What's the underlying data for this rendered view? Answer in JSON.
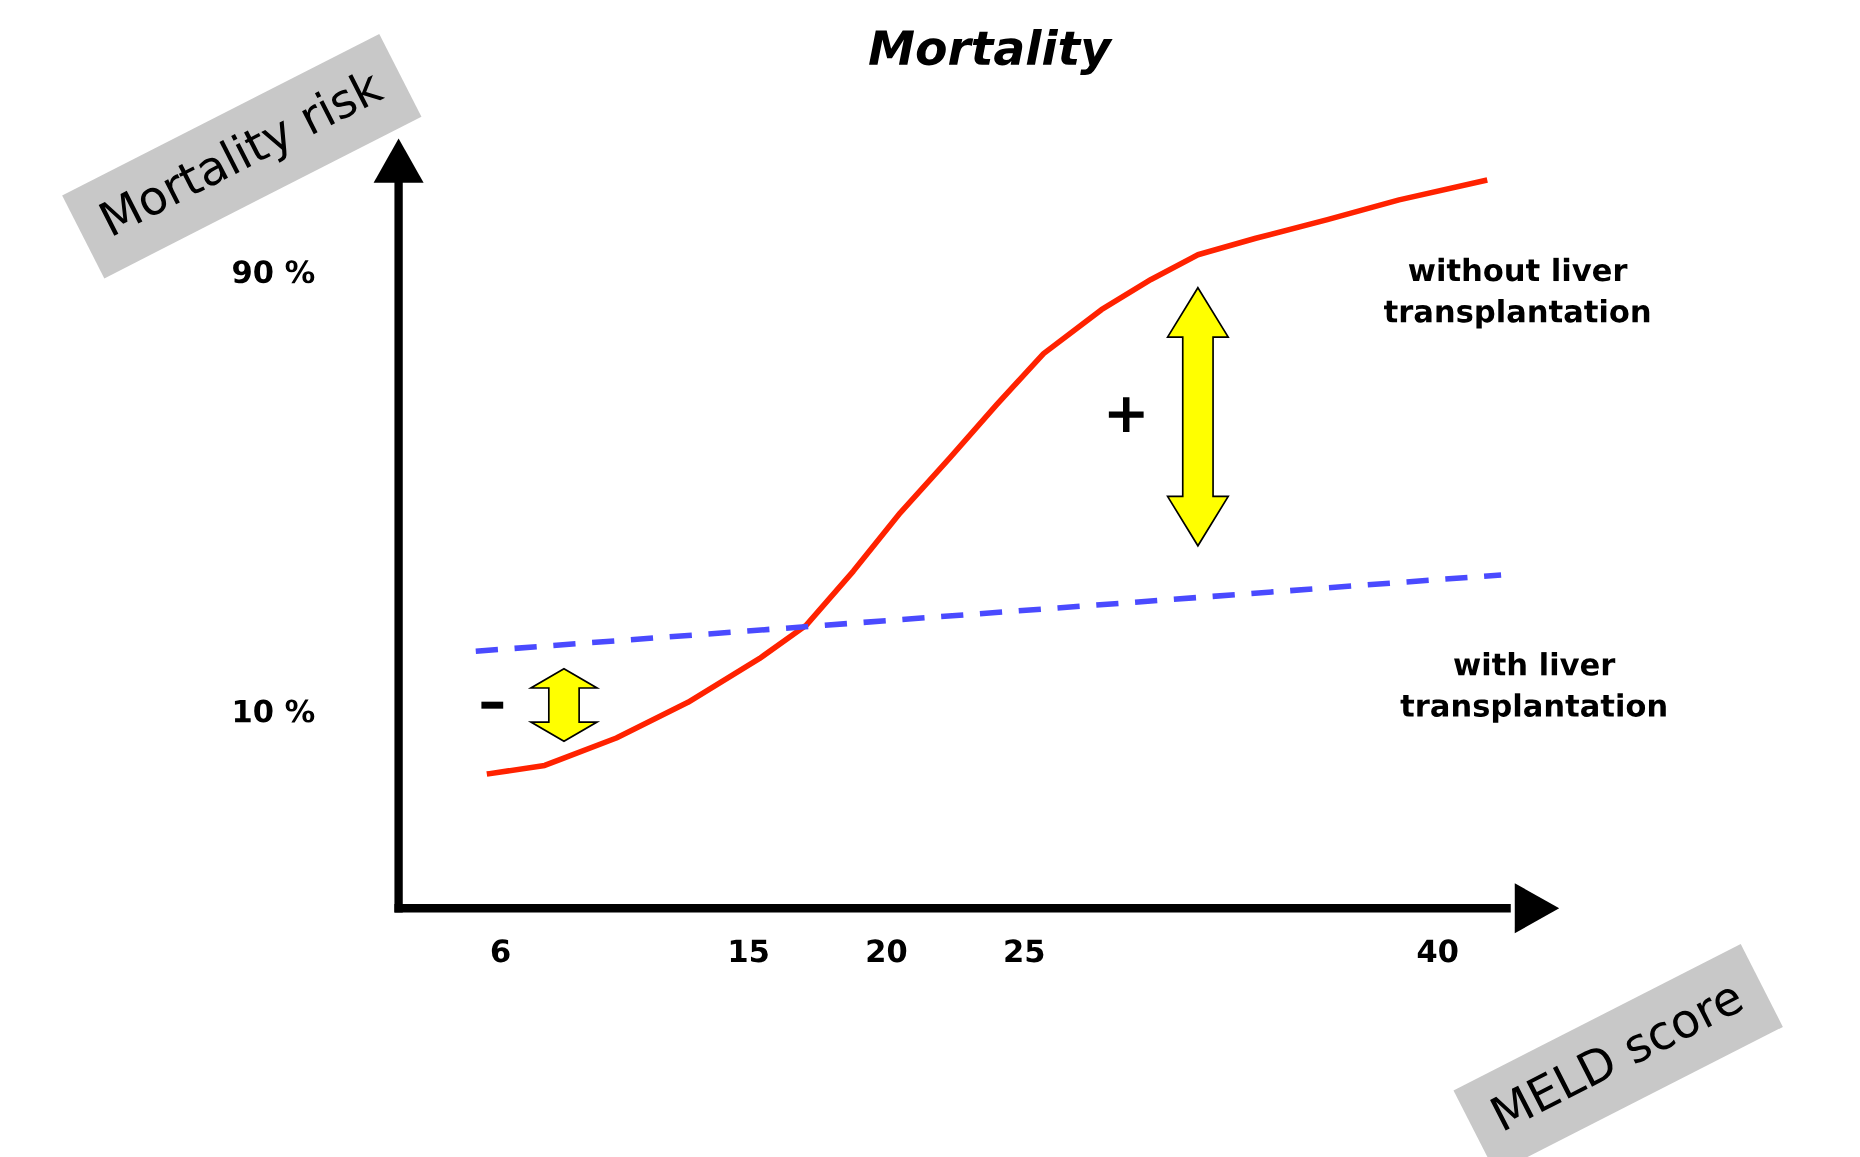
{
  "chart_data": {
    "type": "line",
    "title": "Mortality",
    "xlabel": "MELD score",
    "ylabel": "Mortality risk",
    "xlim": [
      2.3,
      42.5
    ],
    "ylim": [
      -26,
      108
    ],
    "xticks": [
      6,
      15,
      20,
      25,
      40
    ],
    "yticks": [
      {
        "value": 10,
        "label": "10 %"
      },
      {
        "value": 90,
        "label": "90 %"
      }
    ],
    "grid": false,
    "legend": false,
    "series": [
      {
        "name": "without liver transplantation",
        "color": "#ff2200",
        "line_style": "solid",
        "x": [
          5.6,
          7.6,
          10.2,
          12.8,
          15.4,
          17.1,
          18.8,
          20.5,
          22.3,
          24,
          25.7,
          27.8,
          29.6,
          31.3,
          33.4,
          36,
          38.6,
          41.7
        ],
        "values": [
          -1.5,
          0,
          5,
          11.5,
          19.5,
          25.6,
          35.4,
          46,
          56,
          65.7,
          75,
          83,
          88.5,
          93,
          96,
          99.4,
          103,
          106.5
        ]
      },
      {
        "name": "with liver transplantation",
        "color": "#4a4aff",
        "line_style": "dashed",
        "x": [
          5.1,
          42.3
        ],
        "values": [
          20.8,
          34.7
        ]
      }
    ],
    "annotations": [
      "–",
      "+"
    ]
  }
}
